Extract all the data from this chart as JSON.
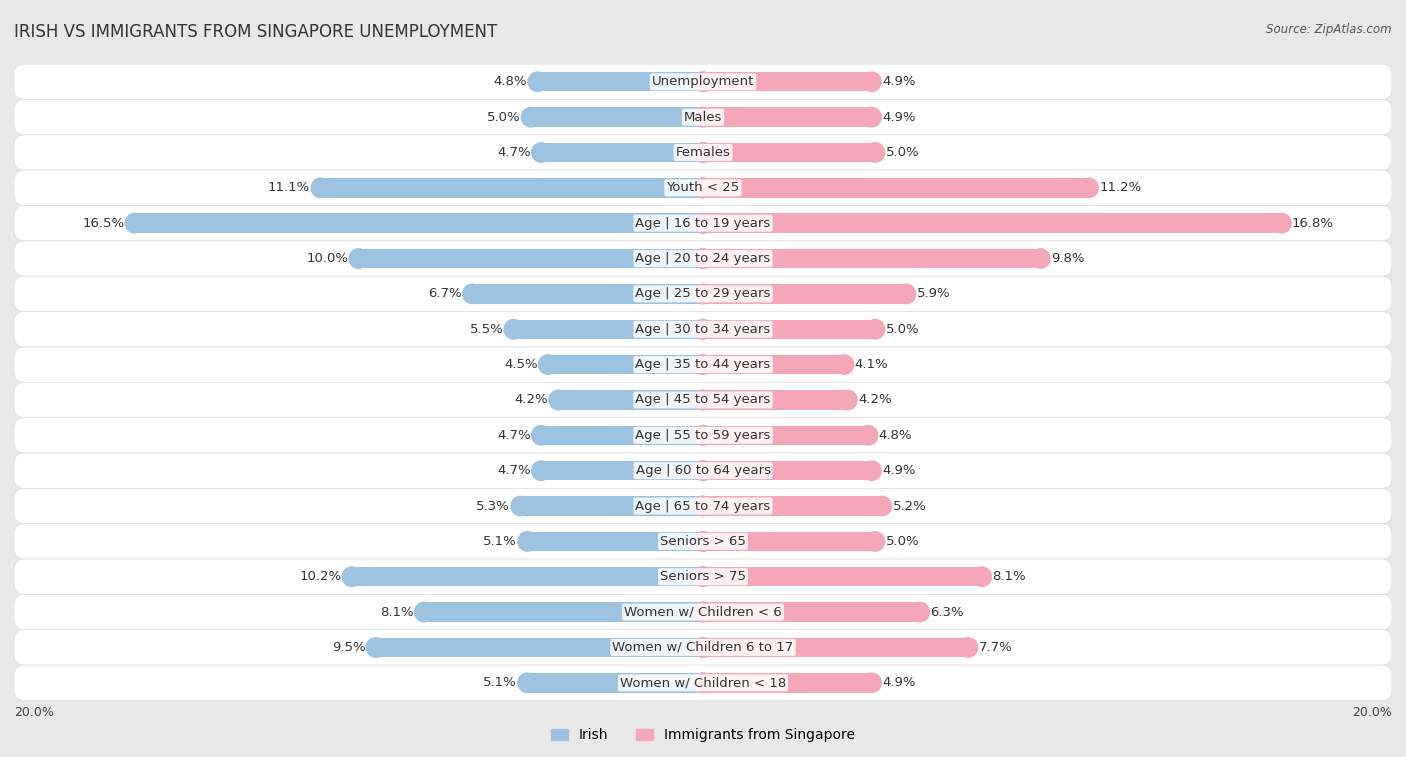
{
  "title": "Irish vs Immigrants from Singapore Unemployment",
  "source": "Source: ZipAtlas.com",
  "categories": [
    "Unemployment",
    "Males",
    "Females",
    "Youth < 25",
    "Age | 16 to 19 years",
    "Age | 20 to 24 years",
    "Age | 25 to 29 years",
    "Age | 30 to 34 years",
    "Age | 35 to 44 years",
    "Age | 45 to 54 years",
    "Age | 55 to 59 years",
    "Age | 60 to 64 years",
    "Age | 65 to 74 years",
    "Seniors > 65",
    "Seniors > 75",
    "Women w/ Children < 6",
    "Women w/ Children 6 to 17",
    "Women w/ Children < 18"
  ],
  "irish_values": [
    4.8,
    5.0,
    4.7,
    11.1,
    16.5,
    10.0,
    6.7,
    5.5,
    4.5,
    4.2,
    4.7,
    4.7,
    5.3,
    5.1,
    10.2,
    8.1,
    9.5,
    5.1
  ],
  "singapore_values": [
    4.9,
    4.9,
    5.0,
    11.2,
    16.8,
    9.8,
    5.9,
    5.0,
    4.1,
    4.2,
    4.8,
    4.9,
    5.2,
    5.0,
    8.1,
    6.3,
    7.7,
    4.9
  ],
  "irish_color": "#9dc3e0",
  "singapore_color": "#f4a7b9",
  "row_bg_light": "#f5f5f5",
  "row_bg_dark": "#e8e8e8",
  "background_color": "#e8e8e8",
  "axis_max": 20.0,
  "bar_height": 0.55,
  "label_fontsize": 9.5,
  "title_fontsize": 12,
  "legend_labels": [
    "Irish",
    "Immigrants from Singapore"
  ]
}
